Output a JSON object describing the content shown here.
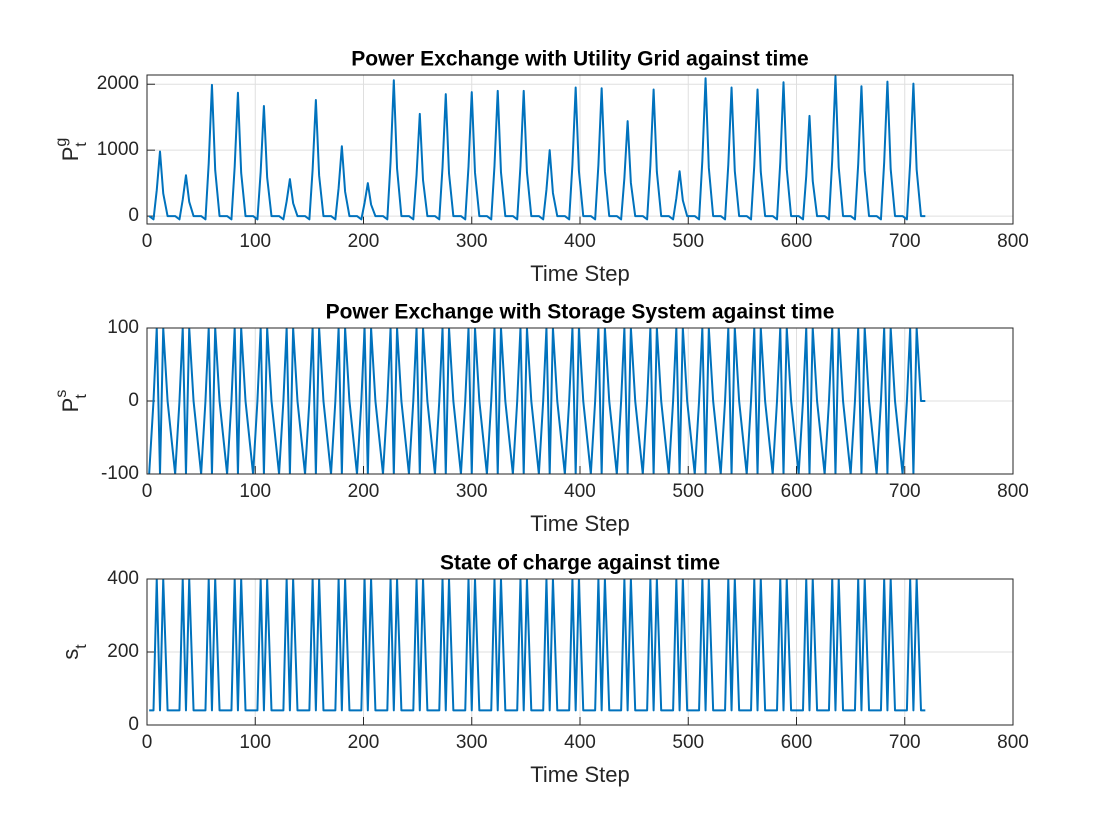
{
  "chart_data": [
    {
      "type": "line",
      "title": "Power Exchange with Utility Grid against time",
      "xlabel": "Time Step",
      "ylabel": {
        "base": "P",
        "sup": "g",
        "sub": "t"
      },
      "color": "#0072bd",
      "grid": true,
      "xlim": [
        0,
        800
      ],
      "xticks": [
        0,
        100,
        200,
        300,
        400,
        500,
        600,
        700,
        800
      ],
      "ylim": [
        -120,
        2140
      ],
      "yticks": [
        0,
        1000,
        2000
      ],
      "x": [
        2,
        6,
        9,
        12,
        15,
        19,
        26,
        30,
        33,
        36,
        39,
        43,
        50,
        54,
        57,
        60,
        63,
        67,
        74,
        78,
        81,
        84,
        87,
        91,
        98,
        102,
        105,
        108,
        111,
        115,
        122,
        126,
        129,
        132,
        135,
        139,
        146,
        150,
        153,
        156,
        159,
        163,
        170,
        174,
        177,
        180,
        183,
        187,
        194,
        198,
        201,
        204,
        207,
        211,
        218,
        222,
        225,
        228,
        231,
        235,
        242,
        246,
        249,
        252,
        255,
        259,
        266,
        270,
        273,
        276,
        279,
        283,
        290,
        294,
        297,
        300,
        303,
        307,
        314,
        318,
        321,
        324,
        327,
        331,
        338,
        342,
        345,
        348,
        351,
        355,
        362,
        366,
        369,
        372,
        375,
        379,
        386,
        390,
        393,
        396,
        399,
        403,
        410,
        414,
        417,
        420,
        423,
        427,
        434,
        438,
        441,
        444,
        447,
        451,
        458,
        462,
        465,
        468,
        471,
        475,
        482,
        486,
        489,
        492,
        495,
        499,
        506,
        510,
        513,
        516,
        519,
        523,
        530,
        534,
        537,
        540,
        543,
        547,
        554,
        558,
        561,
        564,
        567,
        571,
        578,
        582,
        585,
        588,
        591,
        595,
        602,
        606,
        609,
        612,
        615,
        619,
        626,
        630,
        633,
        636,
        639,
        643,
        650,
        654,
        657,
        660,
        663,
        667,
        674,
        678,
        681,
        684,
        687,
        691,
        698,
        702,
        705,
        708,
        711,
        715,
        719
      ],
      "values": [
        0,
        -50,
        392,
        980,
        343,
        0,
        0,
        -50,
        248,
        620,
        217,
        0,
        0,
        -50,
        796,
        1990,
        697,
        0,
        0,
        -50,
        748,
        1870,
        655,
        0,
        0,
        -50,
        668,
        1670,
        585,
        0,
        0,
        -50,
        224,
        560,
        196,
        0,
        0,
        -50,
        704,
        1760,
        616,
        0,
        0,
        -50,
        424,
        1060,
        371,
        0,
        0,
        -50,
        200,
        500,
        175,
        0,
        0,
        -50,
        824,
        2060,
        721,
        0,
        0,
        -50,
        620,
        1550,
        543,
        0,
        0,
        -50,
        740,
        1850,
        648,
        0,
        0,
        -50,
        752,
        1880,
        658,
        0,
        0,
        -50,
        760,
        1900,
        665,
        0,
        0,
        -50,
        760,
        1900,
        665,
        0,
        0,
        -50,
        400,
        1000,
        350,
        0,
        0,
        -50,
        780,
        1950,
        683,
        0,
        0,
        -50,
        776,
        1940,
        679,
        0,
        0,
        -50,
        576,
        1440,
        504,
        0,
        0,
        -50,
        768,
        1920,
        672,
        0,
        0,
        -50,
        272,
        680,
        238,
        0,
        0,
        -50,
        836,
        2090,
        732,
        0,
        0,
        -50,
        780,
        1950,
        683,
        0,
        0,
        -50,
        768,
        1920,
        672,
        0,
        0,
        -50,
        812,
        2030,
        711,
        0,
        0,
        -50,
        608,
        1520,
        532,
        0,
        0,
        -50,
        848,
        2120,
        742,
        0,
        0,
        -50,
        788,
        1970,
        690,
        0,
        0,
        -50,
        816,
        2040,
        714,
        0,
        0,
        -50,
        804,
        2010,
        704,
        0,
        0
      ]
    },
    {
      "type": "line",
      "title": "Power Exchange with Storage System against time",
      "xlabel": "Time Step",
      "ylabel": {
        "base": "P",
        "sup": "s",
        "sub": "t"
      },
      "color": "#0072bd",
      "grid": true,
      "xlim": [
        0,
        800
      ],
      "xticks": [
        0,
        100,
        200,
        300,
        400,
        500,
        600,
        700,
        800
      ],
      "ylim": [
        -100,
        100
      ],
      "yticks": [
        -100,
        0,
        100
      ],
      "x": [
        2,
        6,
        9,
        12,
        15,
        19,
        26,
        30,
        33,
        36,
        39,
        43,
        50,
        54,
        57,
        60,
        63,
        67,
        74,
        78,
        81,
        84,
        87,
        91,
        98,
        102,
        105,
        108,
        111,
        115,
        122,
        126,
        129,
        132,
        135,
        139,
        146,
        150,
        153,
        156,
        159,
        163,
        170,
        174,
        177,
        180,
        183,
        187,
        194,
        198,
        201,
        204,
        207,
        211,
        218,
        222,
        225,
        228,
        231,
        235,
        242,
        246,
        249,
        252,
        255,
        259,
        266,
        270,
        273,
        276,
        279,
        283,
        290,
        294,
        297,
        300,
        303,
        307,
        314,
        318,
        321,
        324,
        327,
        331,
        338,
        342,
        345,
        348,
        351,
        355,
        362,
        366,
        369,
        372,
        375,
        379,
        386,
        390,
        393,
        396,
        399,
        403,
        410,
        414,
        417,
        420,
        423,
        427,
        434,
        438,
        441,
        444,
        447,
        451,
        458,
        462,
        465,
        468,
        471,
        475,
        482,
        486,
        489,
        492,
        495,
        499,
        506,
        510,
        513,
        516,
        519,
        523,
        530,
        534,
        537,
        540,
        543,
        547,
        554,
        558,
        561,
        564,
        567,
        571,
        578,
        582,
        585,
        588,
        591,
        595,
        602,
        606,
        609,
        612,
        615,
        619,
        626,
        630,
        633,
        636,
        639,
        643,
        650,
        654,
        657,
        660,
        663,
        667,
        674,
        678,
        681,
        684,
        687,
        691,
        698,
        702,
        705,
        708,
        711,
        715,
        719
      ],
      "values": [
        -100,
        0,
        100,
        -100,
        100,
        0,
        -100,
        0,
        100,
        -100,
        100,
        0,
        -100,
        0,
        100,
        -100,
        100,
        0,
        -100,
        0,
        100,
        -100,
        100,
        0,
        -100,
        0,
        100,
        -100,
        100,
        0,
        -100,
        0,
        100,
        -100,
        100,
        0,
        -100,
        0,
        100,
        -100,
        100,
        0,
        -100,
        0,
        100,
        -100,
        100,
        0,
        -100,
        0,
        100,
        -100,
        100,
        0,
        -100,
        0,
        100,
        -100,
        100,
        0,
        -100,
        0,
        100,
        -100,
        100,
        0,
        -100,
        0,
        100,
        -100,
        100,
        0,
        -100,
        0,
        100,
        -100,
        100,
        0,
        -100,
        0,
        100,
        -100,
        100,
        0,
        -100,
        0,
        100,
        -100,
        100,
        0,
        -100,
        0,
        100,
        -100,
        100,
        0,
        -100,
        0,
        100,
        -100,
        100,
        0,
        -100,
        0,
        100,
        -100,
        100,
        0,
        -100,
        0,
        100,
        -100,
        100,
        0,
        -100,
        0,
        100,
        -100,
        100,
        0,
        -100,
        0,
        100,
        -100,
        100,
        0,
        -100,
        0,
        100,
        -100,
        100,
        0,
        -100,
        0,
        100,
        -100,
        100,
        0,
        -100,
        0,
        100,
        -100,
        100,
        0,
        -100,
        0,
        100,
        -100,
        100,
        0,
        -100,
        0,
        100,
        -100,
        100,
        0,
        -100,
        0,
        100,
        -100,
        100,
        0,
        -100,
        0,
        100,
        -100,
        100,
        0,
        -100,
        0,
        100,
        -100,
        100,
        0,
        -100,
        0,
        100,
        -100,
        100,
        0,
        0
      ]
    },
    {
      "type": "line",
      "title": "State of charge against time",
      "xlabel": "Time Step",
      "ylabel": {
        "base": "s",
        "sub": "t"
      },
      "color": "#0072bd",
      "grid": true,
      "xlim": [
        0,
        800
      ],
      "xticks": [
        0,
        100,
        200,
        300,
        400,
        500,
        600,
        700,
        800
      ],
      "ylim": [
        0,
        400
      ],
      "yticks": [
        0,
        200,
        400
      ],
      "x": [
        2,
        6,
        9,
        12,
        15,
        19,
        26,
        30,
        33,
        36,
        39,
        43,
        50,
        54,
        57,
        60,
        63,
        67,
        74,
        78,
        81,
        84,
        87,
        91,
        98,
        102,
        105,
        108,
        111,
        115,
        122,
        126,
        129,
        132,
        135,
        139,
        146,
        150,
        153,
        156,
        159,
        163,
        170,
        174,
        177,
        180,
        183,
        187,
        194,
        198,
        201,
        204,
        207,
        211,
        218,
        222,
        225,
        228,
        231,
        235,
        242,
        246,
        249,
        252,
        255,
        259,
        266,
        270,
        273,
        276,
        279,
        283,
        290,
        294,
        297,
        300,
        303,
        307,
        314,
        318,
        321,
        324,
        327,
        331,
        338,
        342,
        345,
        348,
        351,
        355,
        362,
        366,
        369,
        372,
        375,
        379,
        386,
        390,
        393,
        396,
        399,
        403,
        410,
        414,
        417,
        420,
        423,
        427,
        434,
        438,
        441,
        444,
        447,
        451,
        458,
        462,
        465,
        468,
        471,
        475,
        482,
        486,
        489,
        492,
        495,
        499,
        506,
        510,
        513,
        516,
        519,
        523,
        530,
        534,
        537,
        540,
        543,
        547,
        554,
        558,
        561,
        564,
        567,
        571,
        578,
        582,
        585,
        588,
        591,
        595,
        602,
        606,
        609,
        612,
        615,
        619,
        626,
        630,
        633,
        636,
        639,
        643,
        650,
        654,
        657,
        660,
        663,
        667,
        674,
        678,
        681,
        684,
        687,
        691,
        698,
        702,
        705,
        708,
        711,
        715,
        719
      ],
      "values": [
        40,
        40,
        400,
        40,
        400,
        40,
        40,
        40,
        400,
        40,
        400,
        40,
        40,
        40,
        400,
        40,
        400,
        40,
        40,
        40,
        400,
        40,
        400,
        40,
        40,
        40,
        400,
        40,
        400,
        40,
        40,
        40,
        400,
        40,
        400,
        40,
        40,
        40,
        400,
        40,
        400,
        40,
        40,
        40,
        400,
        40,
        400,
        40,
        40,
        40,
        400,
        40,
        400,
        40,
        40,
        40,
        400,
        40,
        400,
        40,
        40,
        40,
        400,
        40,
        400,
        40,
        40,
        40,
        400,
        40,
        400,
        40,
        40,
        40,
        400,
        40,
        400,
        40,
        40,
        40,
        400,
        40,
        400,
        40,
        40,
        40,
        400,
        40,
        400,
        40,
        40,
        40,
        400,
        40,
        400,
        40,
        40,
        40,
        400,
        40,
        400,
        40,
        40,
        40,
        400,
        40,
        400,
        40,
        40,
        40,
        400,
        40,
        400,
        40,
        40,
        40,
        400,
        40,
        400,
        40,
        40,
        40,
        400,
        40,
        400,
        40,
        40,
        40,
        400,
        40,
        400,
        40,
        40,
        40,
        400,
        40,
        400,
        40,
        40,
        40,
        400,
        40,
        400,
        40,
        40,
        40,
        400,
        40,
        400,
        40,
        40,
        40,
        400,
        40,
        400,
        40,
        40,
        40,
        400,
        40,
        400,
        40,
        40,
        40,
        400,
        40,
        400,
        40,
        40,
        40,
        400,
        40,
        400,
        40,
        40,
        40,
        400,
        40,
        400,
        40,
        40
      ]
    }
  ]
}
